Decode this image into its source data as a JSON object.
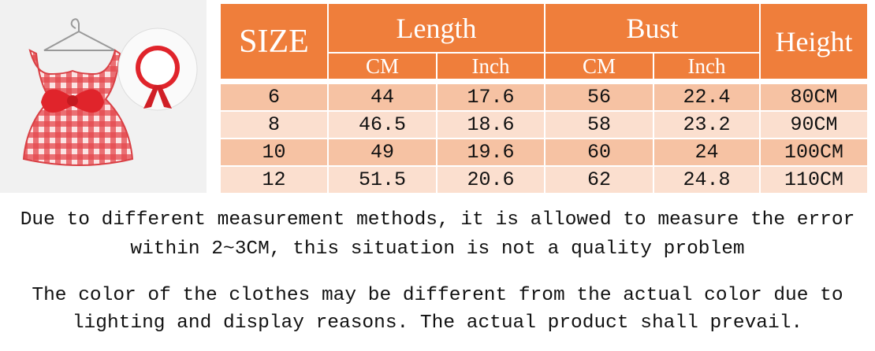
{
  "table": {
    "header": [
      "SIZE",
      "Length",
      "Bust",
      "Height"
    ],
    "subheader": [
      "CM",
      "Inch",
      "CM",
      "Inch"
    ],
    "rows": [
      [
        "6",
        "44",
        "17.6",
        "56",
        "22.4",
        "80CM"
      ],
      [
        "8",
        "46.5",
        "18.6",
        "58",
        "23.2",
        "90CM"
      ],
      [
        "10",
        "49",
        "19.6",
        "60",
        "24",
        "100CM"
      ],
      [
        "12",
        "51.5",
        "20.6",
        "62",
        "24.8",
        "110CM"
      ]
    ]
  },
  "notes": [
    [
      "Due to different measurement methods, it is allowed to measure the error",
      "within 2~3CM, this situation is not a quality problem"
    ],
    [
      "The color of the clothes may be different from the actual color due to",
      "lighting and display reasons. The actual product shall prevail."
    ]
  ]
}
